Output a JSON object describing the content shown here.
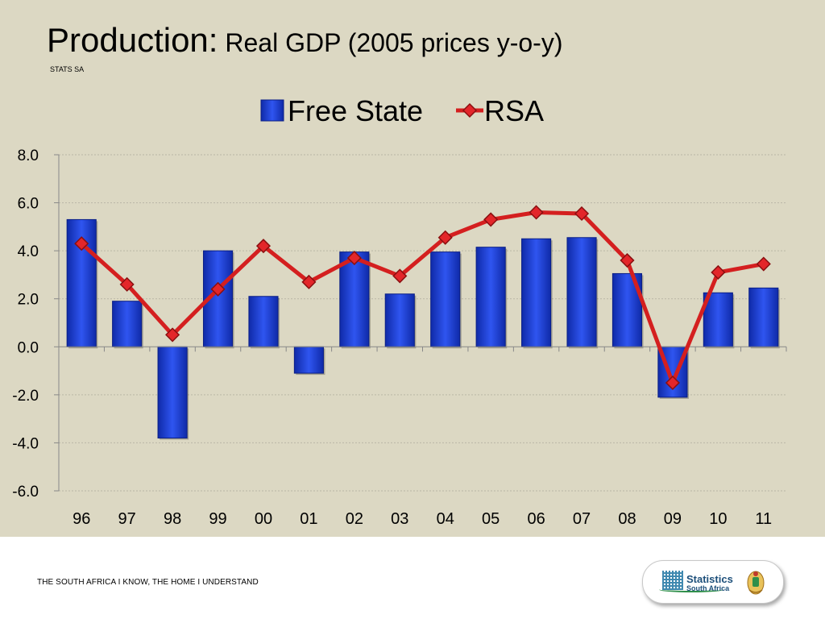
{
  "slide": {
    "title_main": "Production:",
    "title_sub": "Real GDP (2005 prices y-o-y)",
    "source_note": "STATS SA",
    "footer_tagline": "THE SOUTH AFRICA I KNOW, THE HOME I UNDERSTAND",
    "logo_line1": "Statistics",
    "logo_line2": "South Africa"
  },
  "colors": {
    "background": "#dcd8c3",
    "bar_fill": "#1f3fd6",
    "line": "#d41f1f",
    "gridline": "#b9b6a6"
  },
  "chart_data": {
    "type": "bar",
    "title": "",
    "xlabel": "",
    "ylabel": "",
    "categories": [
      "96",
      "97",
      "98",
      "99",
      "00",
      "01",
      "02",
      "03",
      "04",
      "05",
      "06",
      "07",
      "08",
      "09",
      "10",
      "11"
    ],
    "ylim": [
      -6.0,
      8.0
    ],
    "yticks": [
      "8.0",
      "6.0",
      "4.0",
      "2.0",
      "0.0",
      "-2.0",
      "-4.0",
      "-6.0"
    ],
    "grid": true,
    "legend_position": "top",
    "series": [
      {
        "name": "Free State",
        "type": "bar",
        "color": "#1f3fd6",
        "values": [
          5.3,
          1.9,
          -3.8,
          4.0,
          2.1,
          -1.1,
          3.95,
          2.2,
          3.95,
          4.15,
          4.5,
          4.55,
          3.05,
          -2.1,
          2.25,
          2.45
        ]
      },
      {
        "name": "RSA",
        "type": "line",
        "color": "#d41f1f",
        "values": [
          4.3,
          2.6,
          0.5,
          2.4,
          4.2,
          2.7,
          3.7,
          2.95,
          4.55,
          5.3,
          5.6,
          5.55,
          3.6,
          -1.5,
          3.1,
          3.45
        ]
      }
    ]
  }
}
